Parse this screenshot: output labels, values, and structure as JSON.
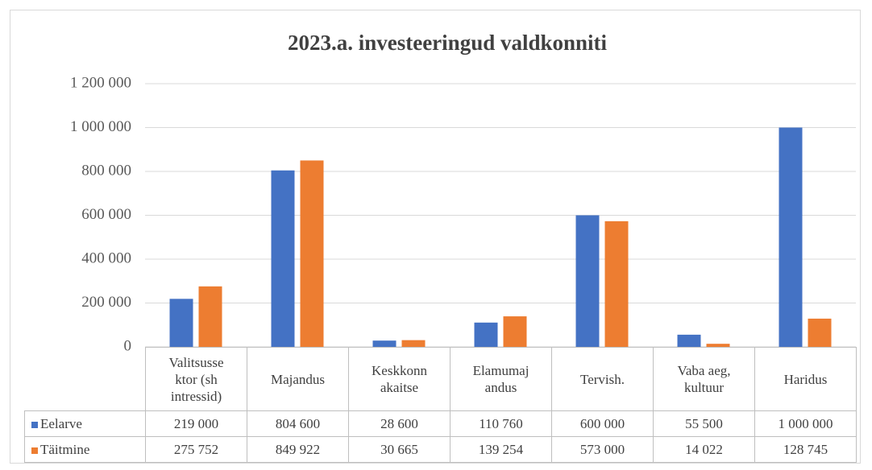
{
  "chart_data": {
    "type": "bar",
    "title": "2023.a. investeeringud valdkonniti",
    "categories": [
      "Valitsusse\nktor (sh\nintressid)",
      "Majandus",
      "Keskkonn\nakaitse",
      "Elamumaj\nandus",
      "Tervish.",
      "Vaba aeg,\nkultuur",
      "Haridus"
    ],
    "series": [
      {
        "name": "Eelarve",
        "color": "#4472c4",
        "values": [
          219000,
          804600,
          28600,
          110760,
          600000,
          55500,
          1000000
        ],
        "value_labels": [
          "219 000",
          "804 600",
          "28 600",
          "110 760",
          "600 000",
          "55 500",
          "1 000 000"
        ]
      },
      {
        "name": "Täitmine",
        "color": "#ed7d31",
        "values": [
          275752,
          849922,
          30665,
          139254,
          573000,
          14022,
          128745
        ],
        "value_labels": [
          "275 752",
          "849 922",
          "30 665",
          "139 254",
          "573 000",
          "14 022",
          "128 745"
        ]
      }
    ],
    "ylim": [
      0,
      1200000
    ],
    "yticks": [
      0,
      {
        "value": 200000,
        "label": "200 000"
      },
      {
        "value": 400000,
        "label": "400 000"
      },
      {
        "value": 600000,
        "label": "600 000"
      },
      {
        "value": 800000,
        "label": "800 000"
      },
      {
        "value": 1000000,
        "label": "1 000 000"
      },
      {
        "value": 1200000,
        "label": "1 200 000"
      }
    ],
    "grid": true
  }
}
